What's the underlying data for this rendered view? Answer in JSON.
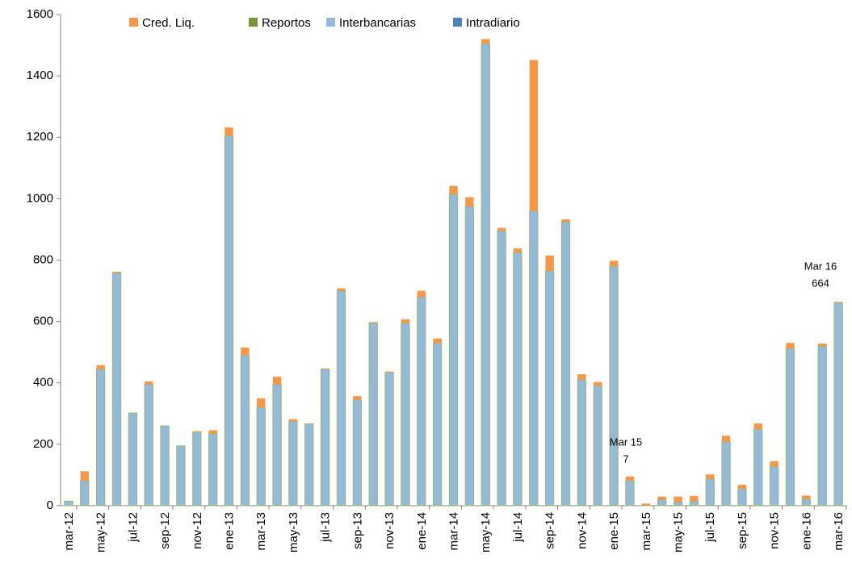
{
  "chart_data": {
    "type": "stacked-bar",
    "categories": [
      "mar-12",
      null,
      "may-12",
      null,
      "jul-12",
      null,
      "sep-12",
      null,
      "nov-12",
      null,
      "ene-13",
      null,
      "mar-13",
      null,
      "may-13",
      null,
      "jul-13",
      null,
      "sep-13",
      null,
      "nov-13",
      null,
      "ene-14",
      null,
      "mar-14",
      null,
      "may-14",
      null,
      "jul-14",
      null,
      "sep-14",
      null,
      "nov-14",
      null,
      "ene-15",
      null,
      "mar-15",
      null,
      "may-15",
      null,
      "jul-15",
      null,
      "sep-15",
      null,
      "nov-15",
      null,
      "ene-16",
      null,
      "mar-16"
    ],
    "series": [
      {
        "name": "Cred. Liq.",
        "color": "#f79646",
        "values": [
          0,
          30,
          13,
          4,
          0,
          10,
          0,
          0,
          3,
          11,
          27,
          25,
          30,
          25,
          7,
          0,
          2,
          8,
          12,
          3,
          2,
          12,
          20,
          15,
          27,
          30,
          15,
          10,
          13,
          492,
          50,
          8,
          18,
          13,
          18,
          13,
          5,
          10,
          18,
          17,
          14,
          20,
          13,
          18,
          17,
          18,
          11,
          8,
          2
        ]
      },
      {
        "name": "Reportos",
        "color": "#77933c",
        "values": [
          0,
          0,
          0,
          0,
          0,
          0,
          0,
          0,
          0,
          0,
          0,
          0,
          0,
          0,
          0,
          0,
          0,
          0,
          0,
          0,
          0,
          0,
          0,
          0,
          0,
          0,
          0,
          0,
          0,
          0,
          0,
          0,
          0,
          0,
          0,
          0,
          0,
          0,
          0,
          0,
          0,
          0,
          0,
          0,
          0,
          0,
          0,
          0,
          0
        ]
      },
      {
        "name": "Interbancarias",
        "color": "#93b9dd",
        "values": [
          15,
          82,
          445,
          758,
          302,
          395,
          260,
          195,
          240,
          235,
          1205,
          490,
          320,
          395,
          275,
          267,
          445,
          700,
          345,
          595,
          435,
          595,
          680,
          530,
          1015,
          975,
          1505,
          895,
          825,
          960,
          765,
          925,
          410,
          390,
          780,
          82,
          2,
          20,
          12,
          15,
          88,
          208,
          55,
          250,
          128,
          512,
          22,
          520,
          662
        ]
      },
      {
        "name": "Intradiario",
        "color": "#4f81bd",
        "values": [
          0,
          0,
          0,
          0,
          0,
          0,
          0,
          0,
          0,
          0,
          0,
          0,
          0,
          0,
          0,
          0,
          0,
          0,
          0,
          0,
          0,
          0,
          0,
          0,
          0,
          0,
          0,
          0,
          0,
          0,
          0,
          0,
          0,
          0,
          0,
          0,
          0,
          0,
          0,
          0,
          0,
          0,
          0,
          0,
          0,
          0,
          0,
          0,
          0
        ]
      }
    ],
    "ylim": [
      0,
      1600
    ],
    "yticks": [
      0,
      200,
      400,
      600,
      800,
      1000,
      1200,
      1400,
      1600
    ],
    "grid": false,
    "legend": "top",
    "annotations": [
      {
        "text": [
          "Mar 15",
          "7"
        ]
      },
      {
        "text": [
          "Mar 16",
          "664"
        ]
      }
    ]
  }
}
